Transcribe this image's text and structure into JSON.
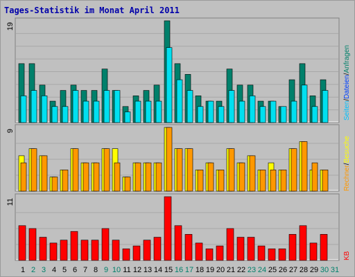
{
  "title": "Tages-Statistik im Monat April 2011",
  "colors": {
    "background": "#c0c0c0",
    "panel": "#c0c0c0",
    "grid": "#a8a8a8",
    "title": "#0000aa",
    "hits": "#00806b",
    "files": "#00e0f0",
    "pages": "#00c0ff",
    "visits": "#ffff00",
    "sites": "#ff9800",
    "kbytes": "#ff0000",
    "weekend_label": "#00806b",
    "weekday_label": "#000000"
  },
  "legend": {
    "top": [
      "Anfragen",
      "/",
      "Dateien",
      "/",
      "Seiten"
    ],
    "middle": [
      "Besuche",
      "/",
      "Rechner"
    ],
    "bottom": "KB"
  },
  "chart_data": [
    {
      "type": "bar",
      "title": "",
      "ylim": [
        0,
        19
      ],
      "tick_label": "19",
      "categories": [
        "1",
        "2",
        "3",
        "4",
        "5",
        "6",
        "7",
        "8",
        "9",
        "10",
        "11",
        "12",
        "13",
        "14",
        "15",
        "16",
        "17",
        "18",
        "19",
        "20",
        "21",
        "22",
        "23",
        "24",
        "25",
        "26",
        "27",
        "28",
        "29",
        "30",
        "31"
      ],
      "series": [
        {
          "name": "Anfragen",
          "values": [
            11,
            11,
            7,
            4,
            6,
            7,
            6,
            6,
            10,
            6,
            3,
            5,
            6,
            7,
            19,
            11,
            9,
            5,
            4,
            4,
            10,
            7,
            7,
            4,
            4,
            3,
            8,
            11,
            5,
            8,
            0
          ]
        },
        {
          "name": "Dateien",
          "values": [
            5,
            6,
            5,
            3,
            3,
            6,
            4,
            4,
            6,
            6,
            2,
            4,
            4,
            4,
            14,
            8,
            6,
            3,
            4,
            3,
            6,
            4,
            5,
            3,
            4,
            3,
            4,
            7,
            3,
            6,
            0
          ]
        },
        {
          "name": "Seiten",
          "values": [
            5,
            6,
            5,
            3,
            3,
            6,
            4,
            4,
            6,
            6,
            2,
            4,
            4,
            4,
            14,
            8,
            6,
            3,
            4,
            3,
            6,
            4,
            5,
            3,
            4,
            3,
            4,
            7,
            3,
            6,
            0
          ]
        }
      ]
    },
    {
      "type": "bar",
      "title": "",
      "ylim": [
        0,
        9
      ],
      "tick_label": "9",
      "categories": [
        "1",
        "2",
        "3",
        "4",
        "5",
        "6",
        "7",
        "8",
        "9",
        "10",
        "11",
        "12",
        "13",
        "14",
        "15",
        "16",
        "17",
        "18",
        "19",
        "20",
        "21",
        "22",
        "23",
        "24",
        "25",
        "26",
        "27",
        "28",
        "29",
        "30",
        "31"
      ],
      "series": [
        {
          "name": "Besuche",
          "values": [
            5,
            6,
            5,
            2,
            3,
            6,
            4,
            4,
            6,
            6,
            2,
            4,
            4,
            4,
            9,
            6,
            6,
            3,
            4,
            3,
            6,
            4,
            5,
            3,
            4,
            3,
            6,
            7,
            3,
            3,
            0
          ]
        },
        {
          "name": "Rechner",
          "values": [
            4,
            6,
            5,
            2,
            3,
            6,
            4,
            4,
            6,
            4,
            2,
            4,
            4,
            4,
            9,
            6,
            6,
            3,
            4,
            3,
            6,
            4,
            5,
            3,
            3,
            3,
            6,
            7,
            4,
            3,
            0
          ]
        }
      ]
    },
    {
      "type": "bar",
      "title": "",
      "ylim": [
        0,
        11
      ],
      "tick_label": "11",
      "categories": [
        "1",
        "2",
        "3",
        "4",
        "5",
        "6",
        "7",
        "8",
        "9",
        "10",
        "11",
        "12",
        "13",
        "14",
        "15",
        "16",
        "17",
        "18",
        "19",
        "20",
        "21",
        "22",
        "23",
        "24",
        "25",
        "26",
        "27",
        "28",
        "29",
        "30",
        "31"
      ],
      "series": [
        {
          "name": "KB",
          "values": [
            6,
            5.5,
            4,
            3,
            3.5,
            5,
            3.5,
            3.5,
            5.5,
            3.5,
            2,
            2.5,
            3.5,
            4,
            11,
            6,
            4.5,
            3,
            2,
            2.5,
            5.5,
            4,
            4,
            2.5,
            2,
            2,
            4.5,
            6,
            3,
            4.5,
            0
          ]
        }
      ]
    }
  ],
  "x_labels": [
    {
      "text": "1",
      "weekend": false
    },
    {
      "text": "2",
      "weekend": true
    },
    {
      "text": "3",
      "weekend": true
    },
    {
      "text": "4",
      "weekend": false
    },
    {
      "text": "5",
      "weekend": false
    },
    {
      "text": "6",
      "weekend": false
    },
    {
      "text": "7",
      "weekend": false
    },
    {
      "text": "8",
      "weekend": false
    },
    {
      "text": "9",
      "weekend": true
    },
    {
      "text": "10",
      "weekend": true
    },
    {
      "text": "11",
      "weekend": false
    },
    {
      "text": "12",
      "weekend": false
    },
    {
      "text": "13",
      "weekend": false
    },
    {
      "text": "14",
      "weekend": false
    },
    {
      "text": "15",
      "weekend": false
    },
    {
      "text": "16",
      "weekend": true
    },
    {
      "text": "17",
      "weekend": true
    },
    {
      "text": "18",
      "weekend": false
    },
    {
      "text": "19",
      "weekend": false
    },
    {
      "text": "20",
      "weekend": false
    },
    {
      "text": "21",
      "weekend": false
    },
    {
      "text": "22",
      "weekend": false
    },
    {
      "text": "23",
      "weekend": true
    },
    {
      "text": "24",
      "weekend": true
    },
    {
      "text": "25",
      "weekend": false
    },
    {
      "text": "26",
      "weekend": false
    },
    {
      "text": "27",
      "weekend": false
    },
    {
      "text": "28",
      "weekend": false
    },
    {
      "text": "29",
      "weekend": false
    },
    {
      "text": "30",
      "weekend": true
    },
    {
      "text": "31",
      "weekend": true
    }
  ]
}
